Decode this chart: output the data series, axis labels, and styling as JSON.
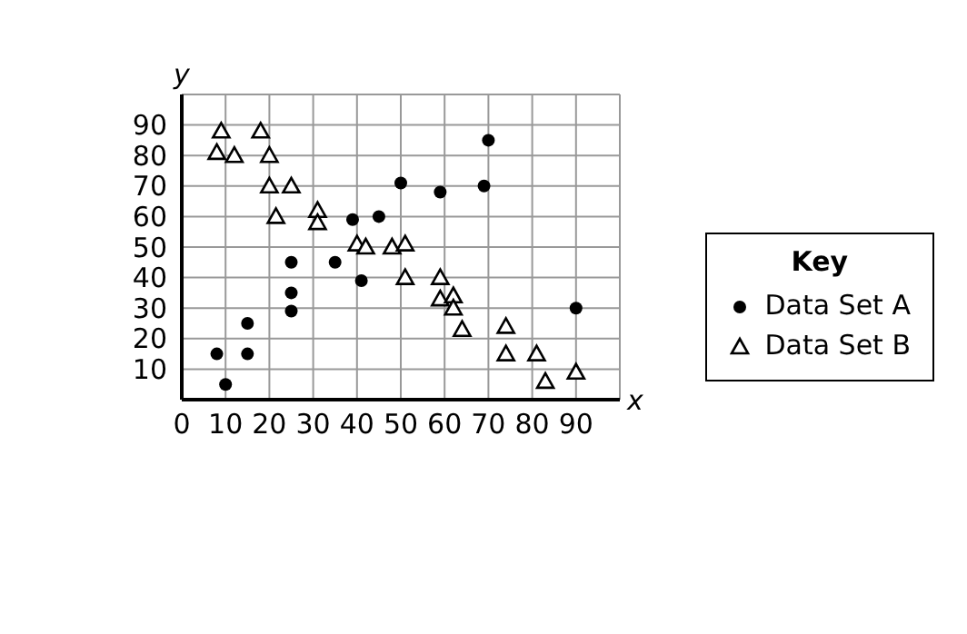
{
  "chart_data": {
    "type": "scatter",
    "xlabel": "x",
    "ylabel": "y",
    "legend_title": "Key",
    "legend": "right",
    "grid": true,
    "xlim": [
      0,
      100
    ],
    "xticks": [
      0,
      10,
      20,
      30,
      40,
      50,
      60,
      70,
      80,
      90,
      {
        "value": 100,
        "label": null
      }
    ],
    "ylim": [
      0,
      100
    ],
    "yticks": [
      {
        "value": 0,
        "label": null
      },
      10,
      20,
      30,
      40,
      50,
      60,
      70,
      80,
      90,
      {
        "value": 100,
        "label": null
      }
    ],
    "series": [
      {
        "name": "Data Set A",
        "color": "#000000",
        "marker": "circle",
        "x": [
          8,
          10,
          15,
          15,
          25,
          25,
          25,
          35,
          39,
          41,
          45,
          50,
          59,
          69,
          70,
          90
        ],
        "values": [
          15,
          5,
          25,
          15,
          45,
          35,
          29,
          45,
          59,
          39,
          60,
          71,
          68,
          70,
          85,
          30
        ]
      },
      {
        "name": "Data Set B",
        "color": "#000000",
        "marker": "triangle",
        "x": [
          9,
          8,
          12,
          18,
          20,
          20,
          21.5,
          25,
          31,
          31,
          40,
          42,
          48,
          51,
          51,
          59,
          59,
          62,
          62,
          64,
          74,
          74,
          81,
          83,
          90
        ],
        "values": [
          88,
          81,
          80,
          88,
          80,
          70,
          60,
          70,
          62,
          58,
          51,
          50,
          50,
          51,
          40,
          40,
          33,
          34,
          30,
          23,
          24,
          15,
          15,
          6,
          9
        ]
      }
    ]
  }
}
